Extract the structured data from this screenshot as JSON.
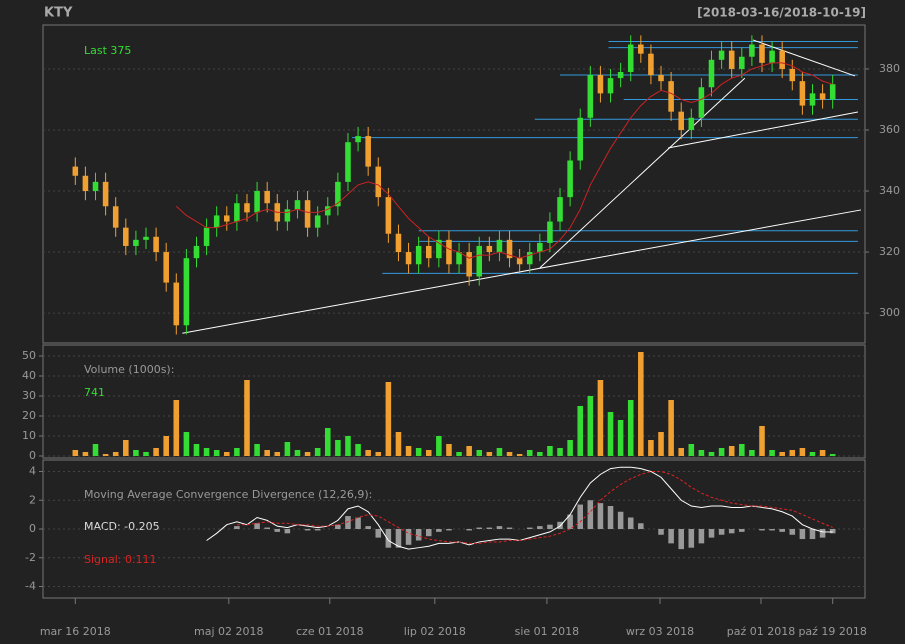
{
  "chart_data": [
    {
      "type": "candlestick",
      "title": "KTY",
      "subtitle": "[2018-03-16/2018-10-19]",
      "annotation": "Last 375",
      "up_color": "#33dd33",
      "down_color": "#f0a030",
      "ma_color": "#cc2222",
      "grid": true,
      "x": [
        0,
        1,
        2,
        3,
        4,
        5,
        6,
        7,
        8,
        9,
        10,
        11,
        12,
        13,
        14,
        15,
        16,
        17,
        18,
        19,
        20,
        21,
        22,
        23,
        24,
        25,
        26,
        27,
        28,
        29,
        30,
        31,
        32,
        33,
        34,
        35,
        36,
        37,
        38,
        39,
        40,
        41,
        42,
        43,
        44,
        45,
        46,
        47,
        48,
        49,
        50,
        51,
        52,
        53,
        54,
        55,
        56,
        57,
        58,
        59,
        60,
        61,
        62,
        63,
        64,
        65,
        66,
        67,
        68,
        69,
        70,
        71,
        72,
        73,
        74,
        75
      ],
      "open": [
        348,
        345,
        340,
        343,
        335,
        328,
        322,
        324,
        325,
        320,
        310,
        296,
        318,
        322,
        328,
        332,
        330,
        336,
        333,
        340,
        336,
        330,
        334,
        337,
        328,
        332,
        335,
        343,
        356,
        358,
        348,
        338,
        326,
        320,
        316,
        322,
        318,
        324,
        316,
        320,
        312,
        322,
        320,
        324,
        318,
        316,
        320,
        323,
        330,
        338,
        350,
        364,
        378,
        372,
        377,
        379,
        388,
        385,
        378,
        376,
        366,
        360,
        364,
        374,
        383,
        386,
        380,
        384,
        388,
        382,
        386,
        380,
        376,
        368,
        372,
        370
      ],
      "high": [
        351,
        348,
        346,
        346,
        338,
        331,
        327,
        328,
        328,
        323,
        313,
        321,
        325,
        331,
        335,
        335,
        339,
        339,
        343,
        343,
        339,
        337,
        340,
        340,
        335,
        338,
        346,
        359,
        361,
        361,
        351,
        341,
        329,
        323,
        325,
        325,
        327,
        327,
        323,
        323,
        325,
        325,
        327,
        327,
        321,
        323,
        326,
        333,
        341,
        353,
        367,
        381,
        381,
        380,
        382,
        391,
        391,
        388,
        381,
        379,
        369,
        367,
        377,
        386,
        389,
        389,
        387,
        391,
        391,
        389,
        389,
        383,
        379,
        375,
        375,
        378
      ],
      "low": [
        342,
        337,
        337,
        332,
        325,
        319,
        319,
        321,
        317,
        307,
        293,
        293,
        315,
        319,
        325,
        327,
        327,
        330,
        330,
        333,
        327,
        327,
        331,
        325,
        325,
        329,
        332,
        340,
        353,
        345,
        335,
        323,
        317,
        313,
        313,
        315,
        315,
        313,
        313,
        309,
        309,
        317,
        317,
        315,
        313,
        313,
        317,
        320,
        327,
        335,
        347,
        361,
        369,
        369,
        374,
        376,
        382,
        375,
        373,
        363,
        357,
        357,
        361,
        371,
        380,
        377,
        377,
        381,
        379,
        379,
        377,
        373,
        365,
        365,
        367,
        367
      ],
      "close": [
        345,
        340,
        343,
        335,
        328,
        322,
        324,
        325,
        320,
        310,
        296,
        318,
        322,
        328,
        332,
        330,
        336,
        333,
        340,
        336,
        330,
        334,
        337,
        328,
        332,
        335,
        343,
        356,
        358,
        348,
        338,
        326,
        320,
        316,
        322,
        318,
        324,
        316,
        320,
        312,
        322,
        320,
        324,
        318,
        316,
        320,
        323,
        330,
        338,
        350,
        364,
        378,
        372,
        377,
        379,
        388,
        385,
        378,
        376,
        366,
        360,
        364,
        374,
        383,
        386,
        380,
        384,
        388,
        382,
        386,
        380,
        376,
        368,
        372,
        370,
        375
      ],
      "ma": [
        null,
        null,
        null,
        null,
        null,
        null,
        null,
        null,
        null,
        null,
        335,
        332,
        330,
        328,
        328,
        329,
        330,
        331,
        333,
        334,
        333,
        333,
        334,
        333,
        333,
        334,
        336,
        339,
        342,
        343,
        342,
        339,
        335,
        331,
        328,
        325,
        323,
        321,
        320,
        318,
        319,
        319,
        320,
        319,
        318,
        319,
        320,
        321,
        324,
        328,
        334,
        342,
        348,
        354,
        359,
        364,
        368,
        371,
        373,
        372,
        370,
        369,
        370,
        372,
        375,
        377,
        378,
        380,
        381,
        382,
        382,
        381,
        379,
        378,
        376,
        375
      ],
      "hline_color": "#3399dd",
      "hlines": [
        {
          "y": 389,
          "x": [
            52.8,
            77.5
          ]
        },
        {
          "y": 387,
          "x": [
            52.8,
            77.5
          ]
        },
        {
          "y": 378,
          "x": [
            48,
            77.5
          ]
        },
        {
          "y": 370,
          "x": [
            54.3,
            77.5
          ]
        },
        {
          "y": 363.5,
          "x": [
            45.5,
            77.5
          ]
        },
        {
          "y": 357.5,
          "x": [
            27.4,
            77.5
          ]
        },
        {
          "y": 327,
          "x": [
            34,
            77.5
          ]
        },
        {
          "y": 323.5,
          "x": [
            34,
            77.5
          ]
        },
        {
          "y": 313,
          "x": [
            30.4,
            77.5
          ]
        }
      ],
      "tline_color": "#ffffff",
      "tlines": [
        {
          "x": [
            10.6,
            77.8
          ],
          "y": [
            293.4,
            333.8
          ]
        },
        {
          "x": [
            46,
            66.3
          ],
          "y": [
            314.8,
            377
          ]
        },
        {
          "x": [
            58.7,
            77.5
          ],
          "y": [
            354.1,
            365.9
          ]
        },
        {
          "x": [
            67.1,
            77.2
          ],
          "y": [
            389.5,
            377.7
          ]
        }
      ],
      "ylim": [
        290.2,
        394.4
      ],
      "yticks": [
        300,
        320,
        340,
        360,
        380
      ]
    },
    {
      "type": "bar",
      "title": "Volume (1000s):",
      "annotation": "741",
      "values": [
        3,
        2,
        6,
        1,
        2,
        8,
        3,
        2,
        4,
        10,
        28,
        12,
        6,
        4,
        3,
        2,
        4,
        38,
        6,
        3,
        2,
        7,
        3,
        2,
        4,
        14,
        8,
        10,
        6,
        3,
        2,
        37,
        12,
        5,
        4,
        3,
        10,
        6,
        2,
        5,
        3,
        2,
        4,
        2,
        1,
        3,
        2,
        5,
        4,
        8,
        25,
        30,
        38,
        22,
        18,
        28,
        52,
        8,
        12,
        28,
        4,
        6,
        3,
        2,
        4,
        5,
        6,
        3,
        15,
        3,
        2,
        3,
        4,
        2,
        3,
        1
      ],
      "ylim": [
        -1,
        55.5
      ],
      "yticks": [
        0,
        10,
        20,
        30,
        40,
        50
      ],
      "grid": true
    },
    {
      "type": "macd",
      "title": "Moving Average Convergence Divergence (12,26,9):",
      "macd_label": "MACD: -0.205",
      "signal_label": "Signal: 0.111",
      "macd_color": "#ffffff",
      "signal_color": "#dd2222",
      "hist_color": "#999999",
      "macd": [
        null,
        null,
        null,
        null,
        null,
        null,
        null,
        null,
        null,
        null,
        null,
        null,
        null,
        -0.8,
        -0.3,
        0.3,
        0.5,
        0.3,
        0.8,
        0.6,
        0.2,
        0.1,
        0.3,
        0.2,
        0.1,
        0.2,
        0.6,
        1.4,
        1.6,
        1.2,
        0.3,
        -0.8,
        -1.2,
        -1.4,
        -1.3,
        -1.2,
        -1.0,
        -1.0,
        -0.9,
        -1.1,
        -0.9,
        -0.8,
        -0.7,
        -0.7,
        -0.8,
        -0.6,
        -0.4,
        -0.2,
        0.2,
        1.0,
        2.2,
        3.2,
        3.8,
        4.2,
        4.3,
        4.3,
        4.2,
        4.0,
        3.6,
        2.8,
        2.0,
        1.6,
        1.5,
        1.6,
        1.6,
        1.5,
        1.5,
        1.6,
        1.5,
        1.4,
        1.2,
        0.9,
        0.3,
        0.0,
        -0.2,
        -0.205
      ],
      "signal": [
        null,
        null,
        null,
        null,
        null,
        null,
        null,
        null,
        null,
        null,
        null,
        null,
        null,
        null,
        null,
        null,
        0.3,
        0.3,
        0.4,
        0.5,
        0.4,
        0.4,
        0.3,
        0.3,
        0.2,
        0.2,
        0.3,
        0.5,
        0.8,
        1.0,
        0.9,
        0.5,
        0.1,
        -0.3,
        -0.5,
        -0.7,
        -0.8,
        -0.9,
        -0.9,
        -1.0,
        -1.0,
        -0.9,
        -0.9,
        -0.8,
        -0.8,
        -0.7,
        -0.6,
        -0.5,
        -0.3,
        0,
        0.5,
        1.2,
        2.0,
        2.6,
        3.1,
        3.5,
        3.8,
        4.0,
        4.0,
        3.8,
        3.4,
        2.9,
        2.5,
        2.2,
        2.0,
        1.8,
        1.7,
        1.6,
        1.6,
        1.5,
        1.4,
        1.3,
        1.0,
        0.7,
        0.4,
        0.111
      ],
      "histogram": [
        null,
        null,
        null,
        null,
        null,
        null,
        null,
        null,
        null,
        null,
        null,
        null,
        null,
        null,
        null,
        null,
        0.2,
        0,
        0.4,
        0.1,
        -0.2,
        -0.3,
        0,
        -0.1,
        -0.1,
        0,
        0.3,
        0.9,
        0.8,
        0.2,
        -0.6,
        -1.3,
        -1.3,
        -1.1,
        -0.8,
        -0.5,
        -0.2,
        -0.1,
        0,
        -0.1,
        0.1,
        0.1,
        0.2,
        0.1,
        0,
        0.1,
        0.2,
        0.3,
        0.5,
        1.0,
        1.7,
        2.0,
        1.8,
        1.6,
        1.2,
        0.8,
        0.4,
        0,
        -0.4,
        -1.0,
        -1.4,
        -1.3,
        -1.0,
        -0.6,
        -0.4,
        -0.3,
        -0.2,
        0,
        -0.1,
        -0.1,
        -0.2,
        -0.4,
        -0.7,
        -0.7,
        -0.6,
        -0.3
      ],
      "ylim": [
        -4.8,
        4.8
      ],
      "yticks": [
        -4,
        -2,
        0,
        2,
        4
      ],
      "grid": true,
      "xlim": [
        -3.2,
        78.2
      ],
      "xticks": [
        {
          "value": 0,
          "label": "mar 16 2018"
        },
        {
          "value": 15.2,
          "label": "maj 02 2018"
        },
        {
          "value": 25.2,
          "label": "cze 01 2018"
        },
        {
          "value": 35.6,
          "label": "lip 02 2018"
        },
        {
          "value": 46.7,
          "label": "sie 01 2018"
        },
        {
          "value": 57.9,
          "label": "wrz 03 2018"
        },
        {
          "value": 67.9,
          "label": "paź 01 2018"
        },
        {
          "value": 75,
          "label": "paź 19 2018"
        }
      ]
    }
  ]
}
